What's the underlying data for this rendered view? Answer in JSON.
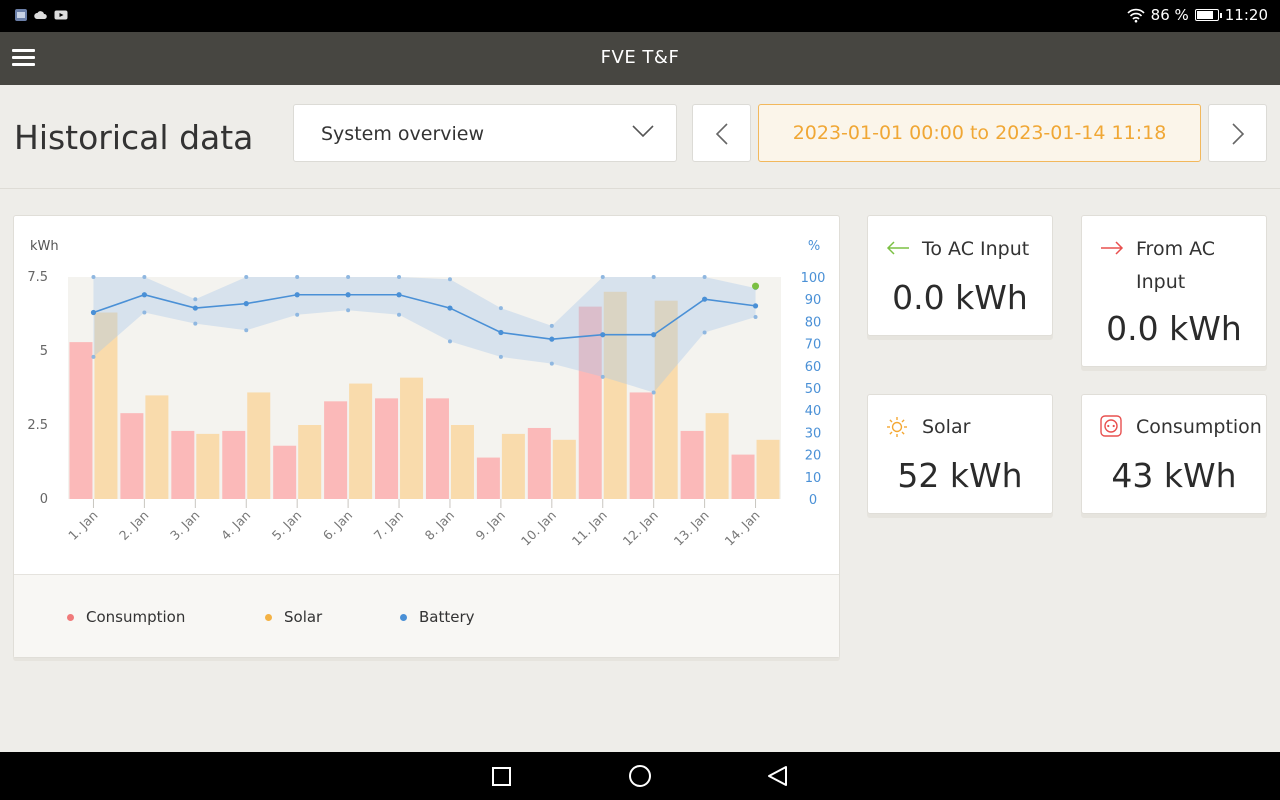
{
  "status_bar": {
    "battery_percent": "86 %",
    "battery_level": 0.86,
    "time": "11:20",
    "left_icons": [
      "app-icon",
      "cloud-icon",
      "youtube-icon"
    ]
  },
  "app_bar": {
    "title": "FVE T&F",
    "menu_icon": "hamburger-menu-icon"
  },
  "header": {
    "title": "Historical data",
    "view_select": {
      "value": "System overview"
    },
    "date_range": "2023-01-01 00:00 to 2023-01-14 11:18"
  },
  "chart_data": {
    "type": "bar",
    "y_left_unit": "kWh",
    "y_right_unit": "%",
    "y_left_ticks": [
      "0",
      "2.5",
      "5",
      "7.5"
    ],
    "y_right_ticks": [
      "0",
      "10",
      "20",
      "30",
      "40",
      "50",
      "60",
      "70",
      "80",
      "90",
      "100"
    ],
    "ylim_left": [
      0,
      7.5
    ],
    "ylim_right": [
      0,
      100
    ],
    "categories": [
      "1. Jan",
      "2. Jan",
      "3. Jan",
      "4. Jan",
      "5. Jan",
      "6. Jan",
      "7. Jan",
      "8. Jan",
      "9. Jan",
      "10. Jan",
      "11. Jan",
      "12. Jan",
      "13. Jan",
      "14. Jan"
    ],
    "series": [
      {
        "name": "Consumption",
        "color": "#f07a7a",
        "values": [
          5.3,
          2.9,
          2.3,
          2.3,
          1.8,
          3.3,
          3.4,
          3.4,
          1.4,
          2.4,
          6.5,
          3.6,
          2.3,
          1.5
        ]
      },
      {
        "name": "Solar",
        "color": "#f4b244",
        "values": [
          6.3,
          3.5,
          2.2,
          3.6,
          2.5,
          3.9,
          4.1,
          2.5,
          2.2,
          2.0,
          7.0,
          6.7,
          2.9,
          2.0
        ]
      },
      {
        "name": "Battery",
        "color": "#4a90d6",
        "axis": "right",
        "values": [
          84,
          92,
          86,
          88,
          92,
          92,
          92,
          86,
          75,
          72,
          74,
          74,
          90,
          87
        ],
        "max": [
          100,
          100,
          90,
          100,
          100,
          100,
          100,
          99,
          86,
          78,
          100,
          100,
          100,
          95
        ],
        "min": [
          64,
          84,
          79,
          76,
          83,
          85,
          83,
          71,
          64,
          61,
          55,
          48,
          75,
          82
        ]
      }
    ],
    "grid": false,
    "legend": "bottom-left"
  },
  "legend": [
    {
      "label": "Consumption",
      "color": "#f07a7a"
    },
    {
      "label": "Solar",
      "color": "#f4b244"
    },
    {
      "label": "Battery",
      "color": "#4a90d6"
    }
  ],
  "stats": {
    "to_ac": {
      "label": "To AC Input",
      "value": "0.0 kWh",
      "icon": "arrow-left-icon",
      "color": "#7bc043"
    },
    "from_ac": {
      "label_line1": "From AC",
      "label_line2": "Input",
      "value": "0.0 kWh",
      "icon": "arrow-right-icon",
      "color": "#e8504f"
    },
    "solar": {
      "label": "Solar",
      "value": "52 kWh",
      "icon": "sun-icon",
      "color": "#f4a732"
    },
    "consumption": {
      "label": "Consumption",
      "value": "43 kWh",
      "icon": "outlet-icon",
      "color": "#e8504f"
    }
  }
}
